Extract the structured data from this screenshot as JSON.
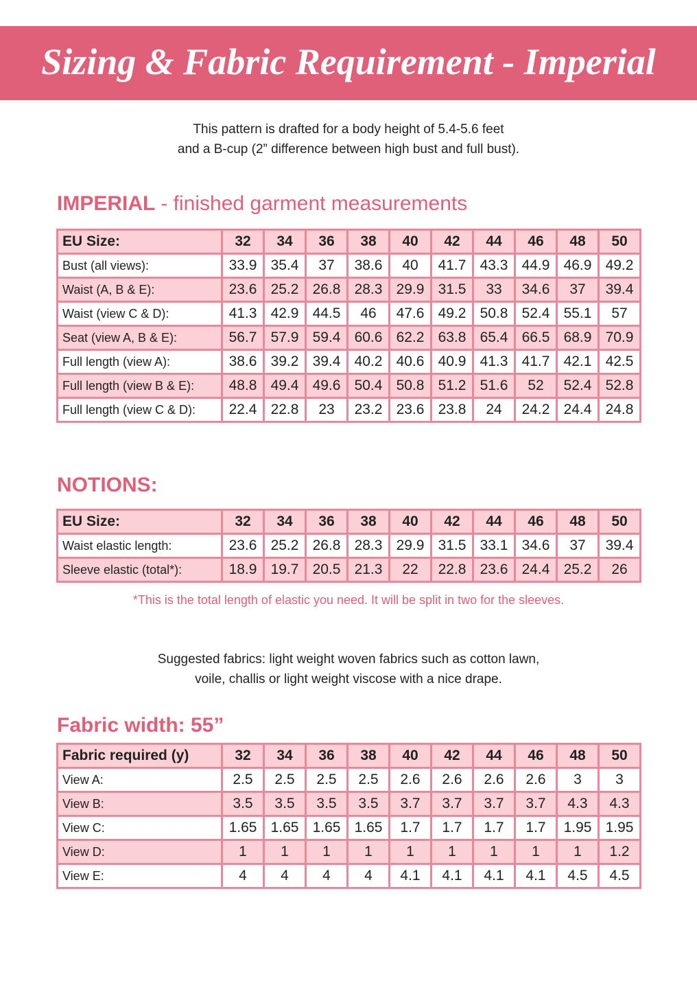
{
  "header": {
    "title": "Sizing & Fabric Requirement - Imperial"
  },
  "intro": {
    "lines": [
      "This pattern is drafted for a body height of 5.4-5.6 feet",
      "and a B-cup (2” difference between high bust and full bust)."
    ]
  },
  "measurements": {
    "heading": {
      "bold": "IMPERIAL",
      "rest": "- finished garment measurements"
    },
    "table": {
      "header": [
        "EU Size:",
        "32",
        "34",
        "36",
        "38",
        "40",
        "42",
        "44",
        "46",
        "48",
        "50"
      ],
      "rows": [
        [
          "Bust (all views):",
          "33.9",
          "35.4",
          "37",
          "38.6",
          "40",
          "41.7",
          "43.3",
          "44.9",
          "46.9",
          "49.2"
        ],
        [
          "Waist (A, B & E):",
          "23.6",
          "25.2",
          "26.8",
          "28.3",
          "29.9",
          "31.5",
          "33",
          "34.6",
          "37",
          "39.4"
        ],
        [
          "Waist (view C & D):",
          "41.3",
          "42.9",
          "44.5",
          "46",
          "47.6",
          "49.2",
          "50.8",
          "52.4",
          "55.1",
          "57"
        ],
        [
          "Seat (view A, B & E):",
          "56.7",
          "57.9",
          "59.4",
          "60.6",
          "62.2",
          "63.8",
          "65.4",
          "66.5",
          "68.9",
          "70.9"
        ],
        [
          "Full length (view A):",
          "38.6",
          "39.2",
          "39.4",
          "40.2",
          "40.6",
          "40.9",
          "41.3",
          "41.7",
          "42.1",
          "42.5"
        ],
        [
          "Full length (view B & E):",
          "48.8",
          "49.4",
          "49.6",
          "50.4",
          "50.8",
          "51.2",
          "51.6",
          "52",
          "52.4",
          "52.8"
        ],
        [
          "Full length (view C & D):",
          "22.4",
          "22.8",
          "23",
          "23.2",
          "23.6",
          "23.8",
          "24",
          "24.2",
          "24.4",
          "24.8"
        ]
      ]
    }
  },
  "notions": {
    "heading": "NOTIONS:",
    "table": {
      "header": [
        "EU Size:",
        "32",
        "34",
        "36",
        "38",
        "40",
        "42",
        "44",
        "46",
        "48",
        "50"
      ],
      "rows": [
        [
          "Waist elastic length:",
          "23.6",
          "25.2",
          "26.8",
          "28.3",
          "29.9",
          "31.5",
          "33.1",
          "34.6",
          "37",
          "39.4"
        ],
        [
          "Sleeve elastic (total*):",
          "18.9",
          "19.7",
          "20.5",
          "21.3",
          "22",
          "22.8",
          "23.6",
          "24.4",
          "25.2",
          "26"
        ]
      ]
    },
    "footnote": "*This is the total length of elastic you need. It will be split in two for the sleeves."
  },
  "suggested": {
    "lines": [
      "Suggested fabrics: light weight woven fabrics such as cotton lawn,",
      "voile, challis or light weight viscose with a nice drape."
    ]
  },
  "fabric": {
    "heading": "Fabric width: 55”",
    "table": {
      "header": [
        "Fabric required (y)",
        "32",
        "34",
        "36",
        "38",
        "40",
        "42",
        "44",
        "46",
        "48",
        "50"
      ],
      "rows": [
        [
          "View A:",
          "2.5",
          "2.5",
          "2.5",
          "2.5",
          "2.6",
          "2.6",
          "2.6",
          "2.6",
          "3",
          "3"
        ],
        [
          "View B:",
          "3.5",
          "3.5",
          "3.5",
          "3.5",
          "3.7",
          "3.7",
          "3.7",
          "3.7",
          "4.3",
          "4.3"
        ],
        [
          "View C:",
          "1.65",
          "1.65",
          "1.65",
          "1.65",
          "1.7",
          "1.7",
          "1.7",
          "1.7",
          "1.95",
          "1.95"
        ],
        [
          "View D:",
          "1",
          "1",
          "1",
          "1",
          "1",
          "1",
          "1",
          "1",
          "1",
          "1.2"
        ],
        [
          "View E:",
          "4",
          "4",
          "4",
          "4",
          "4.1",
          "4.1",
          "4.1",
          "4.1",
          "4.5",
          "4.5"
        ]
      ]
    }
  }
}
